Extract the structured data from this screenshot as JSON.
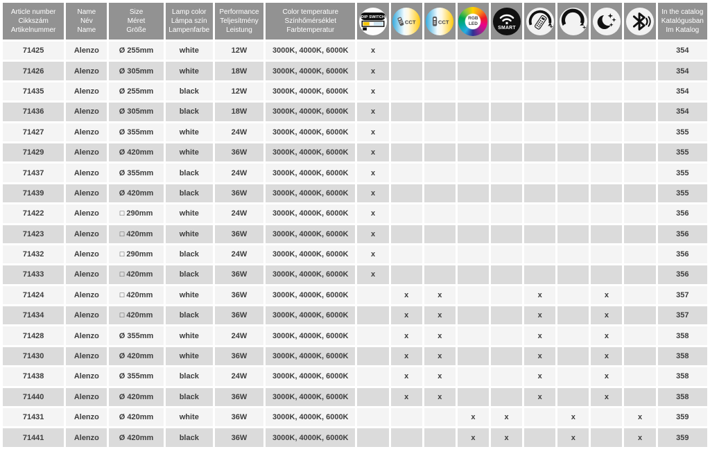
{
  "table": {
    "header": {
      "text_columns": [
        {
          "key": "article",
          "lines": [
            "Article number",
            "Cikkszám",
            "Artikelnummer"
          ]
        },
        {
          "key": "name",
          "lines": [
            "Name",
            "Név",
            "Name"
          ]
        },
        {
          "key": "size",
          "lines": [
            "Size",
            "Méret",
            "Größe"
          ]
        },
        {
          "key": "lamp-color",
          "lines": [
            "Lamp color",
            "Lámpa szín",
            "Lampenfarbe"
          ]
        },
        {
          "key": "performance",
          "lines": [
            "Performance",
            "Teljesítmény",
            "Leistung"
          ]
        },
        {
          "key": "color-temperature",
          "lines": [
            "Color temperature",
            "Színhőmérséklet",
            "Farbtemperatur"
          ]
        }
      ],
      "feature_columns": [
        {
          "icon": "dip-switch-icon",
          "label": "DIP SWITCH"
        },
        {
          "icon": "cct-remote-icon",
          "label": "CCT"
        },
        {
          "icon": "cct-wall-switch-icon",
          "label": "CCT"
        },
        {
          "icon": "rgb-led-icon",
          "label": "RGB LED"
        },
        {
          "icon": "smart-icon",
          "label": "SMART"
        },
        {
          "icon": "remote-dimmer-icon",
          "label": "remote dimming"
        },
        {
          "icon": "dimmer-icon",
          "label": "dimmable"
        },
        {
          "icon": "night-mode-icon",
          "label": "night mode"
        },
        {
          "icon": "bluetooth-icon",
          "label": "bluetooth"
        }
      ],
      "catalog_column": {
        "lines": [
          "In the catalog",
          "Katalógusban",
          "Im Katalog"
        ]
      }
    },
    "mark": "x",
    "rows": [
      {
        "article": "71425",
        "name": "Alenzo",
        "size": "Ø 255mm",
        "lamp_color": "white",
        "performance": "12W",
        "color_temperature": "3000K, 4000K, 6000K",
        "features": [
          1,
          0,
          0,
          0,
          0,
          0,
          0,
          0,
          0
        ],
        "catalog": "354"
      },
      {
        "article": "71426",
        "name": "Alenzo",
        "size": "Ø 305mm",
        "lamp_color": "white",
        "performance": "18W",
        "color_temperature": "3000K, 4000K, 6000K",
        "features": [
          1,
          0,
          0,
          0,
          0,
          0,
          0,
          0,
          0
        ],
        "catalog": "354"
      },
      {
        "article": "71435",
        "name": "Alenzo",
        "size": "Ø 255mm",
        "lamp_color": "black",
        "performance": "12W",
        "color_temperature": "3000K, 4000K, 6000K",
        "features": [
          1,
          0,
          0,
          0,
          0,
          0,
          0,
          0,
          0
        ],
        "catalog": "354"
      },
      {
        "article": "71436",
        "name": "Alenzo",
        "size": "Ø 305mm",
        "lamp_color": "black",
        "performance": "18W",
        "color_temperature": "3000K, 4000K, 6000K",
        "features": [
          1,
          0,
          0,
          0,
          0,
          0,
          0,
          0,
          0
        ],
        "catalog": "354"
      },
      {
        "article": "71427",
        "name": "Alenzo",
        "size": "Ø 355mm",
        "lamp_color": "white",
        "performance": "24W",
        "color_temperature": "3000K, 4000K, 6000K",
        "features": [
          1,
          0,
          0,
          0,
          0,
          0,
          0,
          0,
          0
        ],
        "catalog": "355"
      },
      {
        "article": "71429",
        "name": "Alenzo",
        "size": "Ø 420mm",
        "lamp_color": "white",
        "performance": "36W",
        "color_temperature": "3000K, 4000K, 6000K",
        "features": [
          1,
          0,
          0,
          0,
          0,
          0,
          0,
          0,
          0
        ],
        "catalog": "355"
      },
      {
        "article": "71437",
        "name": "Alenzo",
        "size": "Ø 355mm",
        "lamp_color": "black",
        "performance": "24W",
        "color_temperature": "3000K, 4000K, 6000K",
        "features": [
          1,
          0,
          0,
          0,
          0,
          0,
          0,
          0,
          0
        ],
        "catalog": "355"
      },
      {
        "article": "71439",
        "name": "Alenzo",
        "size": "Ø 420mm",
        "lamp_color": "black",
        "performance": "36W",
        "color_temperature": "3000K, 4000K, 6000K",
        "features": [
          1,
          0,
          0,
          0,
          0,
          0,
          0,
          0,
          0
        ],
        "catalog": "355"
      },
      {
        "article": "71422",
        "name": "Alenzo",
        "size": "□ 290mm",
        "lamp_color": "white",
        "performance": "24W",
        "color_temperature": "3000K, 4000K, 6000K",
        "features": [
          1,
          0,
          0,
          0,
          0,
          0,
          0,
          0,
          0
        ],
        "catalog": "356"
      },
      {
        "article": "71423",
        "name": "Alenzo",
        "size": "□ 420mm",
        "lamp_color": "white",
        "performance": "36W",
        "color_temperature": "3000K, 4000K, 6000K",
        "features": [
          1,
          0,
          0,
          0,
          0,
          0,
          0,
          0,
          0
        ],
        "catalog": "356"
      },
      {
        "article": "71432",
        "name": "Alenzo",
        "size": "□ 290mm",
        "lamp_color": "black",
        "performance": "24W",
        "color_temperature": "3000K, 4000K, 6000K",
        "features": [
          1,
          0,
          0,
          0,
          0,
          0,
          0,
          0,
          0
        ],
        "catalog": "356"
      },
      {
        "article": "71433",
        "name": "Alenzo",
        "size": "□ 420mm",
        "lamp_color": "black",
        "performance": "36W",
        "color_temperature": "3000K, 4000K, 6000K",
        "features": [
          1,
          0,
          0,
          0,
          0,
          0,
          0,
          0,
          0
        ],
        "catalog": "356"
      },
      {
        "article": "71424",
        "name": "Alenzo",
        "size": "□ 420mm",
        "lamp_color": "white",
        "performance": "36W",
        "color_temperature": "3000K, 4000K, 6000K",
        "features": [
          0,
          1,
          1,
          0,
          0,
          1,
          0,
          1,
          0
        ],
        "catalog": "357"
      },
      {
        "article": "71434",
        "name": "Alenzo",
        "size": "□ 420mm",
        "lamp_color": "black",
        "performance": "36W",
        "color_temperature": "3000K, 4000K, 6000K",
        "features": [
          0,
          1,
          1,
          0,
          0,
          1,
          0,
          1,
          0
        ],
        "catalog": "357"
      },
      {
        "article": "71428",
        "name": "Alenzo",
        "size": "Ø 355mm",
        "lamp_color": "white",
        "performance": "24W",
        "color_temperature": "3000K, 4000K, 6000K",
        "features": [
          0,
          1,
          1,
          0,
          0,
          1,
          0,
          1,
          0
        ],
        "catalog": "358"
      },
      {
        "article": "71430",
        "name": "Alenzo",
        "size": "Ø 420mm",
        "lamp_color": "white",
        "performance": "36W",
        "color_temperature": "3000K, 4000K, 6000K",
        "features": [
          0,
          1,
          1,
          0,
          0,
          1,
          0,
          1,
          0
        ],
        "catalog": "358"
      },
      {
        "article": "71438",
        "name": "Alenzo",
        "size": "Ø 355mm",
        "lamp_color": "black",
        "performance": "24W",
        "color_temperature": "3000K, 4000K, 6000K",
        "features": [
          0,
          1,
          1,
          0,
          0,
          1,
          0,
          1,
          0
        ],
        "catalog": "358"
      },
      {
        "article": "71440",
        "name": "Alenzo",
        "size": "Ø 420mm",
        "lamp_color": "black",
        "performance": "36W",
        "color_temperature": "3000K, 4000K, 6000K",
        "features": [
          0,
          1,
          1,
          0,
          0,
          1,
          0,
          1,
          0
        ],
        "catalog": "358"
      },
      {
        "article": "71431",
        "name": "Alenzo",
        "size": "Ø 420mm",
        "lamp_color": "white",
        "performance": "36W",
        "color_temperature": "3000K, 4000K, 6000K",
        "features": [
          0,
          0,
          0,
          1,
          1,
          0,
          1,
          0,
          1
        ],
        "catalog": "359"
      },
      {
        "article": "71441",
        "name": "Alenzo",
        "size": "Ø 420mm",
        "lamp_color": "black",
        "performance": "36W",
        "color_temperature": "3000K, 4000K, 6000K",
        "features": [
          0,
          0,
          0,
          1,
          1,
          0,
          1,
          0,
          1
        ],
        "catalog": "359"
      }
    ]
  },
  "colors": {
    "header_bg": "#929292",
    "header_text": "#ffffff",
    "row_light": "#f4f4f4",
    "row_dark": "#dbdbdb",
    "cell_text": "#3d3d3d",
    "accent_yellow": "#ffd200",
    "accent_blue": "#29abe2",
    "icon_black": "#111111"
  }
}
